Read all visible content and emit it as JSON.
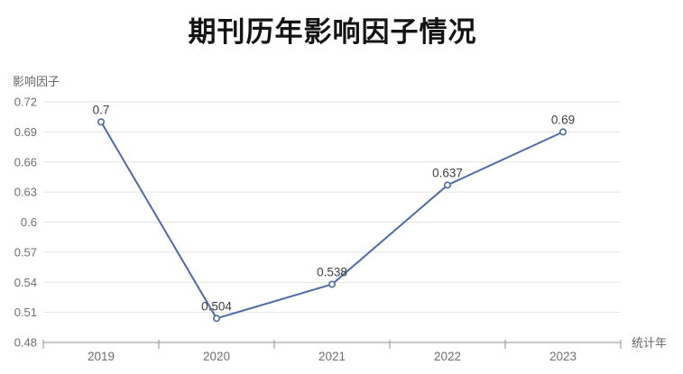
{
  "chart": {
    "title": "期刊历年影响因子情况",
    "y_axis_name": "影响因子",
    "x_axis_name": "统计年"
  },
  "chart_data": {
    "type": "line",
    "title": "期刊历年影响因子情况",
    "xlabel": "统计年",
    "ylabel": "影响因子",
    "categories": [
      "2019",
      "2020",
      "2021",
      "2022",
      "2023"
    ],
    "values": [
      0.7,
      0.504,
      0.538,
      0.637,
      0.69
    ],
    "point_labels": [
      "0.7",
      "0.504",
      "0.538",
      "0.637",
      "0.69"
    ],
    "ylim": [
      0.48,
      0.72
    ],
    "y_tick_labels": [
      "0.48",
      "0.51",
      "0.54",
      "0.57",
      "0.6",
      "0.63",
      "0.66",
      "0.69",
      "0.72"
    ],
    "grid": true,
    "legend_position": "none",
    "marker": "open-circle"
  },
  "colors": {
    "background": "#ffffff",
    "title_text": "#141414",
    "axis_line": "#8f8f8f",
    "grid_line": "#e3e3e3",
    "tick_label": "#6f6f6f",
    "axis_name": "#676767",
    "data_label": "#3f3f3f",
    "series_line": "#4d6aa8",
    "marker_fill": "#ffffff"
  }
}
